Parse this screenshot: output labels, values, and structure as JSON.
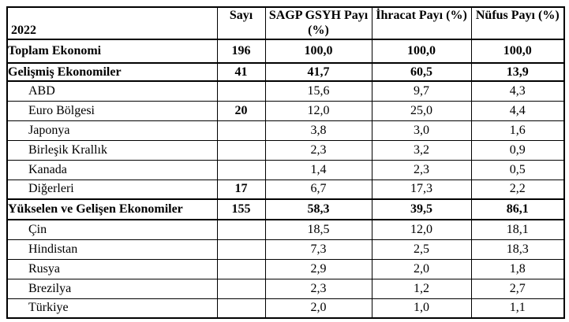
{
  "page": {
    "background_color": "#ffffff",
    "text_color": "#000000",
    "border_color": "#000000"
  },
  "table": {
    "year_label": "2022",
    "headers": {
      "sayi": "Sayı",
      "sagp": "SAGP GSYH Payı (%)",
      "ihracat": "İhracat Payı (%)",
      "nufus": "Nüfus Payı (%)"
    },
    "rows": [
      {
        "label": "Toplam Ekonomi",
        "sayi": "196",
        "sagp": "100,0",
        "ihracat": "100,0",
        "nufus": "100,0"
      },
      {
        "label": "Gelişmiş Ekonomiler",
        "sayi": "41",
        "sagp": "41,7",
        "ihracat": "60,5",
        "nufus": "13,9"
      },
      {
        "label": "ABD",
        "sayi": "",
        "sagp": "15,6",
        "ihracat": "9,7",
        "nufus": "4,3"
      },
      {
        "label": "Euro Bölgesi",
        "sayi": "20",
        "sagp": "12,0",
        "ihracat": "25,0",
        "nufus": "4,4"
      },
      {
        "label": "Japonya",
        "sayi": "",
        "sagp": "3,8",
        "ihracat": "3,0",
        "nufus": "1,6"
      },
      {
        "label": "Birleşik Krallık",
        "sayi": "",
        "sagp": "2,3",
        "ihracat": "3,2",
        "nufus": "0,9"
      },
      {
        "label": "Kanada",
        "sayi": "",
        "sagp": "1,4",
        "ihracat": "2,3",
        "nufus": "0,5"
      },
      {
        "label": "Diğerleri",
        "sayi": "17",
        "sagp": "6,7",
        "ihracat": "17,3",
        "nufus": "2,2"
      },
      {
        "label": "Yükselen ve Gelişen Ekonomiler",
        "sayi": "155",
        "sagp": "58,3",
        "ihracat": "39,5",
        "nufus": "86,1"
      },
      {
        "label": "Çin",
        "sayi": "",
        "sagp": "18,5",
        "ihracat": "12,0",
        "nufus": "18,1"
      },
      {
        "label": "Hindistan",
        "sayi": "",
        "sagp": "7,3",
        "ihracat": "2,5",
        "nufus": "18,3"
      },
      {
        "label": "Rusya",
        "sayi": "",
        "sagp": "2,9",
        "ihracat": "2,0",
        "nufus": "1,8"
      },
      {
        "label": "Brezilya",
        "sayi": "",
        "sagp": "2,3",
        "ihracat": "1,2",
        "nufus": "2,7"
      },
      {
        "label": "Türkiye",
        "sayi": "",
        "sagp": "2,0",
        "ihracat": "1,0",
        "nufus": "1,1"
      }
    ]
  }
}
